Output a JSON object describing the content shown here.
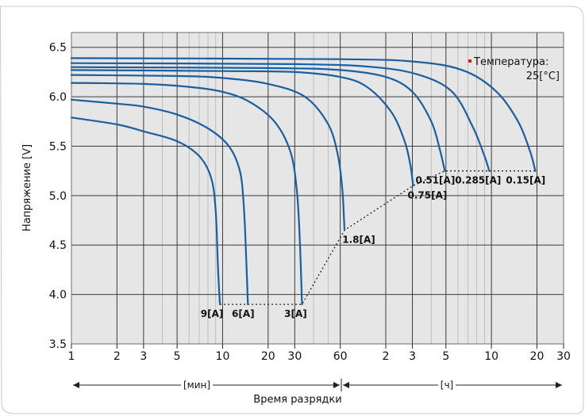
{
  "chart_data": {
    "type": "line",
    "title": "",
    "ylabel": "Напряжение [V]",
    "xlabel": "Время разрядки",
    "x_scale": "log",
    "xlim_minutes": [
      1,
      1800
    ],
    "ylim": [
      3.5,
      6.65
    ],
    "y_ticks": [
      "3.5",
      "4.0",
      "4.5",
      "5.0",
      "5.5",
      "6.0",
      "6.5"
    ],
    "x_ticks_min": [
      {
        "label": "1",
        "minutes": 1
      },
      {
        "label": "2",
        "minutes": 2
      },
      {
        "label": "3",
        "minutes": 3
      },
      {
        "label": "5",
        "minutes": 5
      },
      {
        "label": "10",
        "minutes": 10
      },
      {
        "label": "20",
        "minutes": 20
      },
      {
        "label": "30",
        "minutes": 30
      },
      {
        "label": "60",
        "minutes": 60
      }
    ],
    "x_ticks_hour": [
      {
        "label": "2",
        "hours": 2
      },
      {
        "label": "3",
        "hours": 3
      },
      {
        "label": "5",
        "hours": 5
      },
      {
        "label": "10",
        "hours": 10
      },
      {
        "label": "20",
        "hours": 20
      },
      {
        "label": "30",
        "hours": 30
      }
    ],
    "unit_labels": {
      "minutes": "[мин]",
      "hours": "[ч]"
    },
    "annotation": {
      "line1": "Температура:",
      "line2": "25[°C]",
      "marker_color": "#d42020"
    },
    "line_color": "#1a5fa0",
    "grid": true,
    "grid_minor_minutes": [
      4,
      6,
      7,
      8,
      9,
      40,
      50
    ],
    "grid_minor_hours": [
      4,
      6,
      7,
      8,
      9
    ],
    "series": [
      {
        "name": "9[A]",
        "label": "9[A]",
        "points": [
          [
            1,
            5.79
          ],
          [
            2,
            5.72
          ],
          [
            3,
            5.65
          ],
          [
            5,
            5.55
          ],
          [
            7,
            5.4
          ],
          [
            8.4,
            5.18
          ],
          [
            9.0,
            4.85
          ],
          [
            9.3,
            4.3
          ],
          [
            9.6,
            3.9
          ]
        ]
      },
      {
        "name": "6[A]",
        "label": "6[A]",
        "points": [
          [
            1,
            5.97
          ],
          [
            2,
            5.93
          ],
          [
            3,
            5.9
          ],
          [
            5,
            5.82
          ],
          [
            8,
            5.68
          ],
          [
            11,
            5.5
          ],
          [
            13,
            5.25
          ],
          [
            13.8,
            4.9
          ],
          [
            14.3,
            4.4
          ],
          [
            14.7,
            3.9
          ]
        ]
      },
      {
        "name": "3[A]",
        "label": "3[A]",
        "points": [
          [
            1,
            6.14
          ],
          [
            3,
            6.13
          ],
          [
            6,
            6.1
          ],
          [
            10,
            6.05
          ],
          [
            15,
            5.95
          ],
          [
            22,
            5.75
          ],
          [
            28,
            5.45
          ],
          [
            31,
            5.05
          ],
          [
            32.5,
            4.5
          ],
          [
            33.5,
            3.9
          ]
        ]
      },
      {
        "name": "1.8[A]",
        "label": "1.8[A]",
        "points": [
          [
            1,
            6.22
          ],
          [
            5,
            6.21
          ],
          [
            10,
            6.19
          ],
          [
            20,
            6.13
          ],
          [
            35,
            6.0
          ],
          [
            50,
            5.72
          ],
          [
            58,
            5.4
          ],
          [
            62,
            5.05
          ],
          [
            64,
            4.65
          ]
        ]
      },
      {
        "name": "0.75[A]",
        "label": "0.75[A]",
        "points": [
          [
            1,
            6.27
          ],
          [
            10,
            6.26
          ],
          [
            30,
            6.25
          ],
          [
            60,
            6.2
          ],
          [
            90,
            6.1
          ],
          [
            130,
            5.85
          ],
          [
            160,
            5.55
          ],
          [
            175,
            5.3
          ],
          [
            182,
            5.1
          ]
        ]
      },
      {
        "name": "0.51[A]",
        "label": "0.51[A]",
        "points": [
          [
            1,
            6.3
          ],
          [
            20,
            6.29
          ],
          [
            60,
            6.27
          ],
          [
            120,
            6.2
          ],
          [
            180,
            6.05
          ],
          [
            240,
            5.75
          ],
          [
            275,
            5.45
          ],
          [
            295,
            5.25
          ]
        ]
      },
      {
        "name": "0.285[A]",
        "label": "0.285[A]",
        "points": [
          [
            1,
            6.34
          ],
          [
            30,
            6.33
          ],
          [
            100,
            6.3
          ],
          [
            200,
            6.22
          ],
          [
            330,
            6.05
          ],
          [
            450,
            5.7
          ],
          [
            540,
            5.4
          ],
          [
            580,
            5.25
          ]
        ]
      },
      {
        "name": "0.15[A]",
        "label": "0.15[A]",
        "points": [
          [
            1,
            6.39
          ],
          [
            60,
            6.38
          ],
          [
            200,
            6.35
          ],
          [
            400,
            6.26
          ],
          [
            650,
            6.05
          ],
          [
            900,
            5.75
          ],
          [
            1080,
            5.45
          ],
          [
            1170,
            5.25
          ]
        ]
      }
    ],
    "endpoint_curve": [
      [
        9.6,
        3.9
      ],
      [
        14.7,
        3.9
      ],
      [
        33.5,
        3.9
      ],
      [
        64,
        4.65
      ],
      [
        182,
        5.1
      ],
      [
        295,
        5.25
      ],
      [
        580,
        5.25
      ],
      [
        1170,
        5.25
      ]
    ]
  }
}
